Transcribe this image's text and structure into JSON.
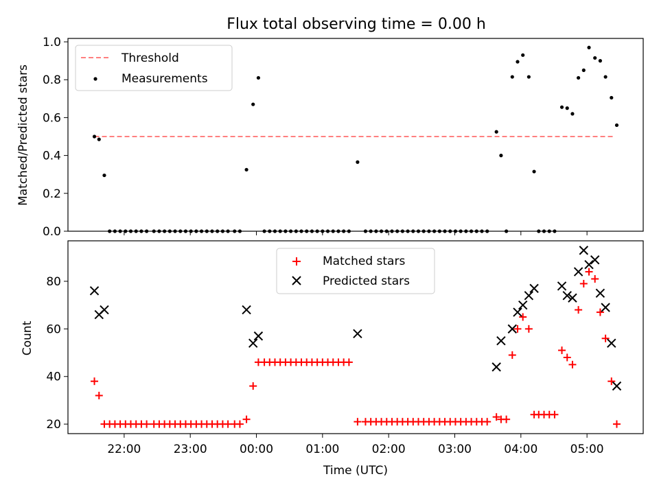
{
  "title": "Flux total observing time = 0.00 h",
  "chart_data": [
    {
      "type": "scatter",
      "ylabel": "Matched/Predicted stars",
      "ylim": [
        0,
        1.0
      ],
      "yticks": [
        "0.0",
        "0.2",
        "0.4",
        "0.6",
        "0.8",
        "1.0"
      ],
      "x_unit": "hours_utc_from_midnight",
      "xlim": [
        -2.85,
        5.85
      ],
      "legend": {
        "placement": "upper-left",
        "entries": [
          "Threshold",
          "Measurements"
        ]
      },
      "threshold": {
        "name": "Threshold",
        "y": 0.5,
        "x": [
          -2.45,
          5.4
        ],
        "color": "#ff7f7f"
      },
      "series": [
        {
          "name": "Measurements",
          "color": "#000000",
          "points": [
            [
              -2.45,
              0.5
            ],
            [
              -2.38,
              0.485
            ],
            [
              -2.3,
              0.295
            ],
            [
              -2.22,
              0.0
            ],
            [
              -2.14,
              0.0
            ],
            [
              -2.06,
              0.0
            ],
            [
              -1.98,
              0.0
            ],
            [
              -1.9,
              0.0
            ],
            [
              -1.82,
              0.0
            ],
            [
              -1.74,
              0.0
            ],
            [
              -1.66,
              0.0
            ],
            [
              -1.55,
              0.0
            ],
            [
              -1.47,
              0.0
            ],
            [
              -1.39,
              0.0
            ],
            [
              -1.31,
              0.0
            ],
            [
              -1.23,
              0.0
            ],
            [
              -1.15,
              0.0
            ],
            [
              -1.07,
              0.0
            ],
            [
              -0.99,
              0.0
            ],
            [
              -0.91,
              0.0
            ],
            [
              -0.83,
              0.0
            ],
            [
              -0.75,
              0.0
            ],
            [
              -0.67,
              0.0
            ],
            [
              -0.59,
              0.0
            ],
            [
              -0.51,
              0.0
            ],
            [
              -0.43,
              0.0
            ],
            [
              -0.33,
              0.0
            ],
            [
              -0.25,
              0.0
            ],
            [
              -0.15,
              0.325
            ],
            [
              -0.05,
              0.67
            ],
            [
              0.03,
              0.81
            ],
            [
              0.12,
              0.0
            ],
            [
              0.2,
              0.0
            ],
            [
              0.28,
              0.0
            ],
            [
              0.36,
              0.0
            ],
            [
              0.44,
              0.0
            ],
            [
              0.52,
              0.0
            ],
            [
              0.6,
              0.0
            ],
            [
              0.68,
              0.0
            ],
            [
              0.76,
              0.0
            ],
            [
              0.84,
              0.0
            ],
            [
              0.92,
              0.0
            ],
            [
              1.0,
              0.0
            ],
            [
              1.08,
              0.0
            ],
            [
              1.16,
              0.0
            ],
            [
              1.24,
              0.0
            ],
            [
              1.32,
              0.0
            ],
            [
              1.4,
              0.0
            ],
            [
              1.53,
              0.365
            ],
            [
              1.65,
              0.0
            ],
            [
              1.73,
              0.0
            ],
            [
              1.81,
              0.0
            ],
            [
              1.89,
              0.0
            ],
            [
              1.97,
              0.0
            ],
            [
              2.05,
              0.0
            ],
            [
              2.13,
              0.0
            ],
            [
              2.21,
              0.0
            ],
            [
              2.29,
              0.0
            ],
            [
              2.37,
              0.0
            ],
            [
              2.45,
              0.0
            ],
            [
              2.53,
              0.0
            ],
            [
              2.61,
              0.0
            ],
            [
              2.69,
              0.0
            ],
            [
              2.77,
              0.0
            ],
            [
              2.85,
              0.0
            ],
            [
              2.93,
              0.0
            ],
            [
              3.01,
              0.0
            ],
            [
              3.09,
              0.0
            ],
            [
              3.17,
              0.0
            ],
            [
              3.25,
              0.0
            ],
            [
              3.33,
              0.0
            ],
            [
              3.41,
              0.0
            ],
            [
              3.49,
              0.0
            ],
            [
              3.63,
              0.525
            ],
            [
              3.7,
              0.4
            ],
            [
              3.78,
              0.0
            ],
            [
              3.87,
              0.815
            ],
            [
              3.95,
              0.895
            ],
            [
              4.03,
              0.93
            ],
            [
              4.12,
              0.815
            ],
            [
              4.2,
              0.315
            ],
            [
              4.27,
              0.0
            ],
            [
              4.35,
              0.0
            ],
            [
              4.43,
              0.0
            ],
            [
              4.51,
              0.0
            ],
            [
              4.62,
              0.655
            ],
            [
              4.7,
              0.65
            ],
            [
              4.78,
              0.62
            ],
            [
              4.87,
              0.81
            ],
            [
              4.95,
              0.85
            ],
            [
              5.03,
              0.97
            ],
            [
              5.12,
              0.915
            ],
            [
              5.2,
              0.9
            ],
            [
              5.28,
              0.815
            ],
            [
              5.37,
              0.705
            ],
            [
              5.45,
              0.56
            ]
          ]
        }
      ]
    },
    {
      "type": "scatter",
      "xlabel": "Time (UTC)",
      "ylabel": "Count",
      "ylim": [
        16,
        97
      ],
      "yticks": [
        "20",
        "40",
        "60",
        "80"
      ],
      "xticks": [
        "22:00",
        "23:00",
        "00:00",
        "01:00",
        "02:00",
        "03:00",
        "04:00",
        "05:00"
      ],
      "x_unit": "hours_utc_from_midnight",
      "xlim": [
        -2.85,
        5.85
      ],
      "legend": {
        "placement": "upper-center",
        "entries": [
          "Matched stars",
          "Predicted stars"
        ]
      },
      "series": [
        {
          "name": "Matched stars",
          "marker": "plus",
          "color": "#ff0000",
          "points": [
            [
              -2.45,
              38
            ],
            [
              -2.38,
              32
            ],
            [
              -2.3,
              20
            ],
            [
              -2.22,
              20
            ],
            [
              -2.14,
              20
            ],
            [
              -2.06,
              20
            ],
            [
              -1.98,
              20
            ],
            [
              -1.9,
              20
            ],
            [
              -1.82,
              20
            ],
            [
              -1.74,
              20
            ],
            [
              -1.66,
              20
            ],
            [
              -1.55,
              20
            ],
            [
              -1.47,
              20
            ],
            [
              -1.39,
              20
            ],
            [
              -1.31,
              20
            ],
            [
              -1.23,
              20
            ],
            [
              -1.15,
              20
            ],
            [
              -1.07,
              20
            ],
            [
              -0.99,
              20
            ],
            [
              -0.91,
              20
            ],
            [
              -0.83,
              20
            ],
            [
              -0.75,
              20
            ],
            [
              -0.67,
              20
            ],
            [
              -0.59,
              20
            ],
            [
              -0.51,
              20
            ],
            [
              -0.43,
              20
            ],
            [
              -0.33,
              20
            ],
            [
              -0.25,
              20
            ],
            [
              -0.15,
              22
            ],
            [
              -0.05,
              36
            ],
            [
              0.03,
              46
            ],
            [
              0.12,
              46
            ],
            [
              0.2,
              46
            ],
            [
              0.28,
              46
            ],
            [
              0.36,
              46
            ],
            [
              0.44,
              46
            ],
            [
              0.52,
              46
            ],
            [
              0.6,
              46
            ],
            [
              0.68,
              46
            ],
            [
              0.76,
              46
            ],
            [
              0.84,
              46
            ],
            [
              0.92,
              46
            ],
            [
              1.0,
              46
            ],
            [
              1.08,
              46
            ],
            [
              1.16,
              46
            ],
            [
              1.24,
              46
            ],
            [
              1.32,
              46
            ],
            [
              1.4,
              46
            ],
            [
              1.53,
              21
            ],
            [
              1.65,
              21
            ],
            [
              1.73,
              21
            ],
            [
              1.81,
              21
            ],
            [
              1.89,
              21
            ],
            [
              1.97,
              21
            ],
            [
              2.05,
              21
            ],
            [
              2.13,
              21
            ],
            [
              2.21,
              21
            ],
            [
              2.29,
              21
            ],
            [
              2.37,
              21
            ],
            [
              2.45,
              21
            ],
            [
              2.53,
              21
            ],
            [
              2.61,
              21
            ],
            [
              2.69,
              21
            ],
            [
              2.77,
              21
            ],
            [
              2.85,
              21
            ],
            [
              2.93,
              21
            ],
            [
              3.01,
              21
            ],
            [
              3.09,
              21
            ],
            [
              3.17,
              21
            ],
            [
              3.25,
              21
            ],
            [
              3.33,
              21
            ],
            [
              3.41,
              21
            ],
            [
              3.49,
              21
            ],
            [
              3.63,
              23
            ],
            [
              3.7,
              22
            ],
            [
              3.78,
              22
            ],
            [
              3.87,
              49
            ],
            [
              3.95,
              60
            ],
            [
              4.03,
              65
            ],
            [
              4.12,
              60
            ],
            [
              4.2,
              24
            ],
            [
              4.27,
              24
            ],
            [
              4.35,
              24
            ],
            [
              4.43,
              24
            ],
            [
              4.51,
              24
            ],
            [
              4.62,
              51
            ],
            [
              4.7,
              48
            ],
            [
              4.78,
              45
            ],
            [
              4.87,
              68
            ],
            [
              4.95,
              79
            ],
            [
              5.03,
              84
            ],
            [
              5.12,
              81
            ],
            [
              5.2,
              67
            ],
            [
              5.28,
              56
            ],
            [
              5.37,
              38
            ],
            [
              5.45,
              20
            ]
          ]
        },
        {
          "name": "Predicted stars",
          "marker": "x",
          "color": "#000000",
          "points": [
            [
              -2.45,
              76
            ],
            [
              -2.38,
              66
            ],
            [
              -2.3,
              68
            ],
            [
              -0.15,
              68
            ],
            [
              -0.05,
              54
            ],
            [
              0.03,
              57
            ],
            [
              1.53,
              58
            ],
            [
              3.63,
              44
            ],
            [
              3.7,
              55
            ],
            [
              3.87,
              60
            ],
            [
              3.95,
              67
            ],
            [
              4.03,
              70
            ],
            [
              4.12,
              74
            ],
            [
              4.2,
              77
            ],
            [
              4.62,
              78
            ],
            [
              4.7,
              74
            ],
            [
              4.78,
              73
            ],
            [
              4.87,
              84
            ],
            [
              4.95,
              93
            ],
            [
              5.03,
              87
            ],
            [
              5.12,
              89
            ],
            [
              5.2,
              75
            ],
            [
              5.28,
              69
            ],
            [
              5.37,
              54
            ],
            [
              5.45,
              36
            ]
          ]
        }
      ]
    }
  ]
}
